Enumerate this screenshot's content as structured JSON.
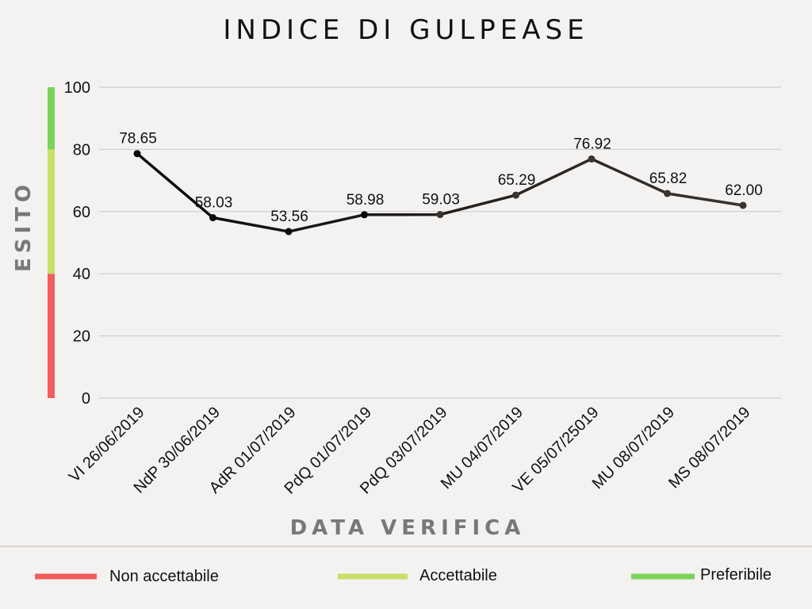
{
  "chart_data": {
    "type": "line",
    "title": "INDICE DI GULPEASE",
    "xlabel": "DATA VERIFICA",
    "ylabel": "ESITO",
    "ylim": [
      0,
      100
    ],
    "yticks": [
      0,
      20,
      40,
      60,
      80,
      100
    ],
    "grid": true,
    "categories": [
      "VI 26/06/2019",
      "NdP 30/06/2019",
      "AdR 01/07/2019",
      "PdQ 01/07/2019",
      "PdQ 03/07/2019",
      "MU 04/07/2019",
      "VE 05/07/25019",
      "MU 08/07/2019",
      "MS 08/07/2019"
    ],
    "values": [
      78.65,
      58.03,
      53.56,
      58.98,
      59.03,
      65.29,
      76.92,
      65.82,
      62.0
    ],
    "data_labels": [
      "78.65",
      "58.03",
      "53.56",
      "58.98",
      "59.03",
      "65.29",
      "76.92",
      "65.82",
      "62.00"
    ],
    "line_color_start": "#0a0a0a",
    "line_color_end": "#3a3330",
    "bands": [
      {
        "from": 0,
        "to": 40,
        "color": "#f25c5c"
      },
      {
        "from": 40,
        "to": 80,
        "color": "#c8df68"
      },
      {
        "from": 80,
        "to": 100,
        "color": "#7ad45a"
      }
    ],
    "legend_position": "bottom",
    "legend": [
      {
        "label": "Non accettabile",
        "color": "#f25c5c"
      },
      {
        "label": "Accettabile",
        "color": "#c8df68"
      },
      {
        "label": "Preferibile",
        "color": "#7ad45a"
      }
    ]
  }
}
